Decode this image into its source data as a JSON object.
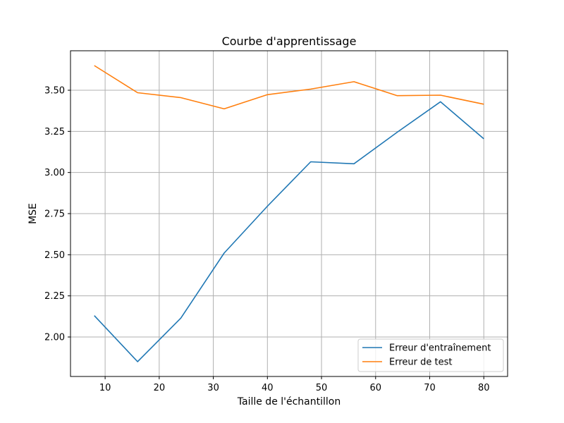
{
  "chart_data": {
    "type": "line",
    "title": "Courbe d'apprentissage",
    "xlabel": "Taille de l'échantillon",
    "ylabel": "MSE",
    "xlim": [
      3.6,
      84.4
    ],
    "ylim": [
      1.76,
      3.74
    ],
    "xticks": [
      10,
      20,
      30,
      40,
      50,
      60,
      70,
      80
    ],
    "yticks": [
      2.0,
      2.25,
      2.5,
      2.75,
      3.0,
      3.25,
      3.5
    ],
    "ytick_labels": [
      "2.00",
      "2.25",
      "2.50",
      "2.75",
      "3.00",
      "3.25",
      "3.50"
    ],
    "grid": true,
    "legend_position": "lower-right",
    "x": [
      8,
      16,
      24,
      32,
      40,
      48,
      56,
      64,
      72,
      80
    ],
    "series": [
      {
        "name": "Erreur d'entraînement",
        "color": "#1f77b4",
        "values": [
          2.13,
          1.85,
          2.115,
          2.51,
          2.795,
          3.065,
          3.053,
          3.245,
          3.43,
          3.205
        ]
      },
      {
        "name": "Erreur de test",
        "color": "#ff7f0e",
        "values": [
          3.65,
          3.485,
          3.455,
          3.387,
          3.473,
          3.507,
          3.552,
          3.467,
          3.47,
          3.415
        ]
      }
    ]
  }
}
